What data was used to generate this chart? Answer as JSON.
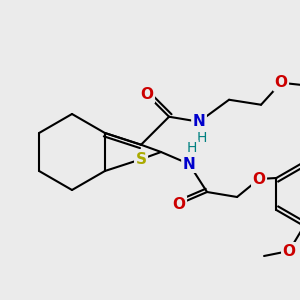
{
  "bg_color": "#ebebeb",
  "bond_color": "#000000",
  "bond_width": 1.5,
  "atoms": {
    "S": {
      "color": "#aaaa00",
      "fontsize": 11,
      "fontweight": "bold"
    },
    "N": {
      "color": "#0000cc",
      "fontsize": 11,
      "fontweight": "bold"
    },
    "O": {
      "color": "#cc0000",
      "fontsize": 11,
      "fontweight": "bold"
    },
    "H": {
      "color": "#008080",
      "fontsize": 10,
      "fontweight": "normal"
    }
  },
  "figure_size": [
    3.0,
    3.0
  ],
  "dpi": 100
}
